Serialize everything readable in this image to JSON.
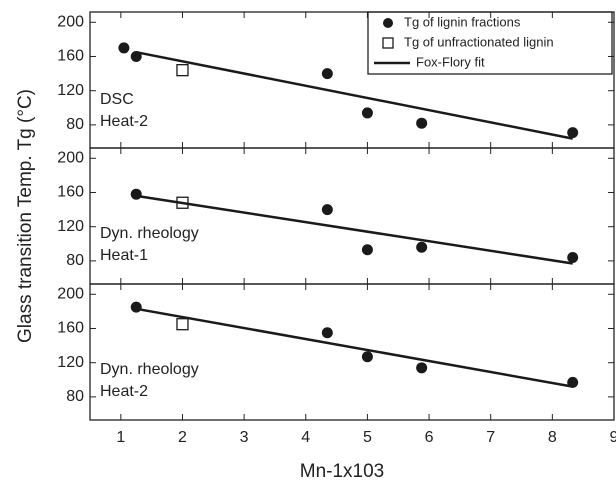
{
  "chart_data": [
    {
      "type": "scatter",
      "annotations": [
        "DSC",
        "Heat-2"
      ],
      "xlim": [
        0.5,
        9
      ],
      "xticks": [
        1,
        2,
        3,
        4,
        5,
        6,
        7,
        8,
        9
      ],
      "ylim": [
        53,
        212
      ],
      "yticks": [
        80,
        120,
        160,
        200
      ],
      "legend": "upper right",
      "series": [
        {
          "name": "Tg of lignin fractions",
          "color": "#1a1a1a",
          "marker": "circle",
          "x": [
            1.05,
            1.25,
            4.35,
            5,
            5.88,
            8.33
          ],
          "values": [
            170,
            160,
            140,
            94,
            82,
            71
          ]
        },
        {
          "name": "Tg of unfractionated lignin",
          "color": "#1a1a1a",
          "marker": "square",
          "x": [
            2
          ],
          "values": [
            144
          ]
        },
        {
          "name": "Fox-Flory fit",
          "color": "#1a1a1a",
          "marker": "line",
          "x": [
            1.25,
            8.33
          ],
          "values": [
            165,
            64
          ]
        }
      ]
    },
    {
      "type": "scatter",
      "y_label": "Glass transition Temp. Tg (°C)",
      "annotations": [
        "Dyn. rheology",
        "Heat-1"
      ],
      "xlim": [
        0.5,
        9
      ],
      "xticks": [
        1,
        2,
        3,
        4,
        5,
        6,
        7,
        8,
        9
      ],
      "ylim": [
        53,
        212
      ],
      "yticks": [
        80,
        120,
        160,
        200
      ],
      "series": [
        {
          "color": "#1a1a1a",
          "marker": "circle",
          "x": [
            1.25,
            4.35,
            5,
            5.88,
            8.33
          ],
          "values": [
            158,
            140,
            93,
            96,
            84
          ]
        },
        {
          "color": "#1a1a1a",
          "marker": "square",
          "x": [
            2
          ],
          "values": [
            148
          ]
        },
        {
          "color": "#1a1a1a",
          "marker": "line",
          "x": [
            1.25,
            8.33
          ],
          "values": [
            156,
            77
          ]
        }
      ]
    },
    {
      "type": "scatter",
      "x_label": "Mn-1x103",
      "annotations": [
        "Dyn. rheology",
        "Heat-2"
      ],
      "xlim": [
        0.5,
        9
      ],
      "xticks": [
        1,
        2,
        3,
        4,
        5,
        6,
        7,
        8,
        9
      ],
      "ylim": [
        53,
        212
      ],
      "yticks": [
        80,
        120,
        160,
        200
      ],
      "series": [
        {
          "color": "#1a1a1a",
          "marker": "circle",
          "x": [
            1.25,
            4.35,
            5,
            5.88,
            8.33
          ],
          "values": [
            185,
            155,
            127,
            114,
            97
          ]
        },
        {
          "color": "#1a1a1a",
          "marker": "square",
          "x": [
            2
          ],
          "values": [
            165
          ]
        },
        {
          "color": "#1a1a1a",
          "marker": "line",
          "x": [
            1.25,
            8.33
          ],
          "values": [
            183,
            92
          ]
        }
      ]
    }
  ]
}
